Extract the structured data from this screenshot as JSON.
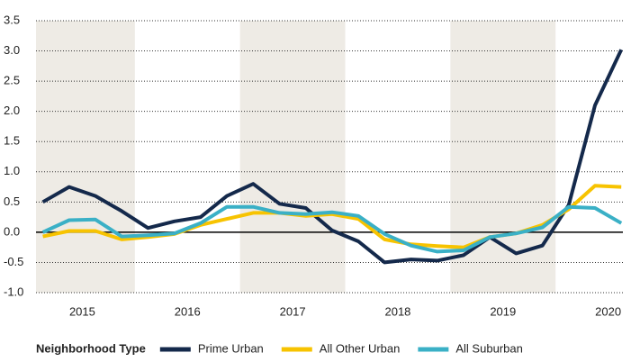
{
  "chart_data": {
    "type": "line",
    "legend_title": "Neighborhood Type",
    "x": [
      2015.125,
      2015.375,
      2015.625,
      2015.875,
      2016.125,
      2016.375,
      2016.625,
      2016.875,
      2017.125,
      2017.375,
      2017.625,
      2017.875,
      2018.125,
      2018.375,
      2018.625,
      2018.875,
      2019.125,
      2019.375,
      2019.625,
      2019.875,
      2020.125,
      2020.375,
      2020.625
    ],
    "xlim": [
      2015.06,
      2020.64
    ],
    "xticks": [
      {
        "value": 2015.5,
        "label": "2015"
      },
      {
        "value": 2016.5,
        "label": "2016"
      },
      {
        "value": 2017.5,
        "label": "2017"
      },
      {
        "value": 2018.5,
        "label": "2018"
      },
      {
        "value": 2019.5,
        "label": "2019"
      },
      {
        "value": 2020.5,
        "label": "2020"
      }
    ],
    "ylim": [
      -1.0,
      3.5
    ],
    "yticks": [
      {
        "value": 3.5,
        "label": "3.5"
      },
      {
        "value": 3.0,
        "label": "3.0"
      },
      2.5,
      {
        "value": 2.0,
        "label": "2.0"
      },
      1.5,
      {
        "value": 1.0,
        "label": "1.0"
      },
      0.5,
      {
        "value": 0.0,
        "label": "0.0"
      },
      -0.5,
      {
        "value": -1.0,
        "label": "-1.0"
      }
    ],
    "grid": true,
    "legend": "bottom",
    "series": [
      {
        "name": "Prime Urban",
        "color": "#14294b",
        "values": [
          0.5,
          0.75,
          0.6,
          0.35,
          0.07,
          0.18,
          0.25,
          0.6,
          0.8,
          0.47,
          0.4,
          0.03,
          -0.15,
          -0.5,
          -0.45,
          -0.47,
          -0.38,
          -0.08,
          -0.35,
          -0.22,
          0.45,
          2.1,
          3.02
        ]
      },
      {
        "name": "All Other Urban",
        "color": "#f7c300",
        "values": [
          -0.07,
          0.02,
          0.02,
          -0.12,
          -0.08,
          -0.03,
          0.12,
          0.22,
          0.32,
          0.32,
          0.27,
          0.3,
          0.22,
          -0.12,
          -0.2,
          -0.23,
          -0.25,
          -0.08,
          -0.02,
          0.12,
          0.38,
          0.77,
          0.75
        ]
      },
      {
        "name": "All Suburban",
        "color": "#3ab0c6",
        "values": [
          0.0,
          0.2,
          0.21,
          -0.07,
          -0.05,
          -0.02,
          0.15,
          0.42,
          0.42,
          0.32,
          0.3,
          0.33,
          0.27,
          -0.03,
          -0.22,
          -0.32,
          -0.3,
          -0.08,
          -0.02,
          0.08,
          0.42,
          0.4,
          0.15
        ]
      }
    ]
  }
}
